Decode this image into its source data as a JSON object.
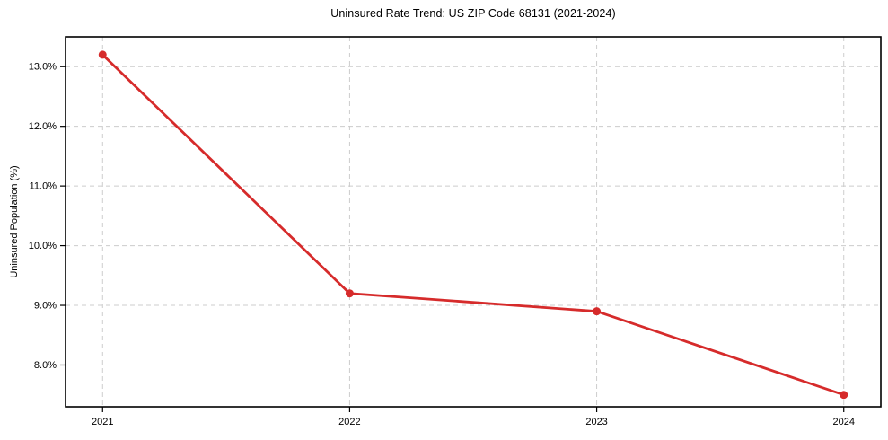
{
  "chart_data": {
    "type": "line",
    "title": "Uninsured Rate Trend: US ZIP Code 68131 (2021-2024)",
    "xlabel": "",
    "ylabel": "Uninsured Population (%)",
    "x": [
      2021,
      2022,
      2023,
      2024
    ],
    "x_tick_labels": [
      "2021",
      "2022",
      "2023",
      "2024"
    ],
    "values": [
      13.2,
      9.2,
      8.9,
      7.5
    ],
    "y_ticks": [
      8.0,
      9.0,
      10.0,
      11.0,
      12.0,
      13.0
    ],
    "y_tick_labels": [
      "8.0%",
      "9.0%",
      "10.0%",
      "11.0%",
      "12.0%",
      "13.0%"
    ],
    "xlim": [
      2020.85,
      2024.15
    ],
    "ylim": [
      7.3,
      13.5
    ],
    "grid": true,
    "grid_style": "dashed",
    "legend": "none",
    "line_color": "#d62b2b",
    "marker": "circle",
    "grid_color": "#cccccc",
    "axis_color": "#000000",
    "text_color": "#000000"
  }
}
